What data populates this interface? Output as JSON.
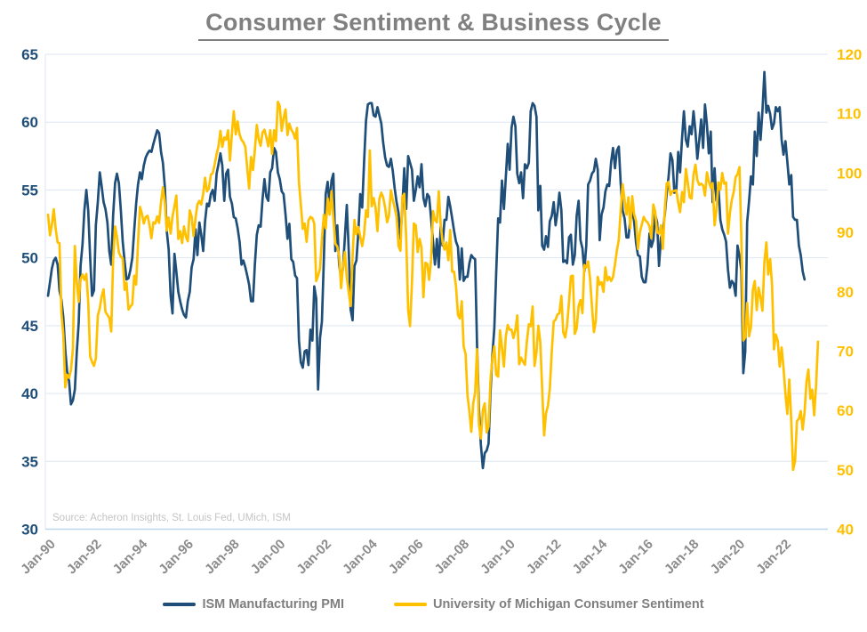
{
  "title": "Consumer Sentiment & Business Cycle",
  "source_note": "Source: Acheron Insights, St. Louis Fed, UMich, ISM",
  "colors": {
    "ism_line": "#1F4E79",
    "umich_line": "#FFC000",
    "title_text": "#808080",
    "x_label_gray": "#8C8C8C",
    "legend_text": "#7F7F7F",
    "source_text": "#C4C4C4",
    "gridline": "#DCE6F2",
    "axis_line": "#BDD7EE",
    "background": "#FFFFFF"
  },
  "chart_data": {
    "type": "line",
    "title": "Consumer Sentiment & Business Cycle",
    "grid": "horizontal-major-left-axis",
    "legend_position": "bottom-center",
    "x_start": "Jan-1990",
    "x_frequency": "monthly",
    "months_per_tick": 24,
    "x_tick_labels": [
      "Jan-90",
      "Jan-92",
      "Jan-94",
      "Jan-96",
      "Jan-98",
      "Jan-00",
      "Jan-02",
      "Jan-04",
      "Jan-06",
      "Jan-08",
      "Jan-10",
      "Jan-12",
      "Jan-14",
      "Jan-16",
      "Jan-18",
      "Jan-20",
      "Jan-22"
    ],
    "left_axis": {
      "min": 30,
      "max": 65,
      "tick_step": 5,
      "ticks": [
        65,
        60,
        55,
        50,
        45,
        40,
        35,
        30
      ],
      "color": "#1F4E79"
    },
    "right_axis": {
      "min": 40,
      "max": 120,
      "tick_step": 10,
      "ticks": [
        120,
        110,
        100,
        90,
        80,
        70,
        60,
        50,
        40
      ],
      "color": "#FFC000"
    },
    "series": [
      {
        "name": "ISM Manufacturing PMI",
        "axis": "left",
        "color": "#1F4E79",
        "start": "Jan-1990",
        "values": [
          47.2,
          48.2,
          49.2,
          49.8,
          50.0,
          49.5,
          47.6,
          46.9,
          45.6,
          43.2,
          41.6,
          40.9,
          39.2,
          39.5,
          40.3,
          43.0,
          45.2,
          49.4,
          51.0,
          53.5,
          55.0,
          53.5,
          50.0,
          47.2,
          47.6,
          52.4,
          54.1,
          56.3,
          55.3,
          54.1,
          53.6,
          52.6,
          50.5,
          49.5,
          53.1,
          55.5,
          56.2,
          55.5,
          53.5,
          51.2,
          49.7,
          48.4,
          48.5,
          49.1,
          50.0,
          52.0,
          54.0,
          55.4,
          56.3,
          55.8,
          56.8,
          57.4,
          57.7,
          57.9,
          57.8,
          58.4,
          58.9,
          59.4,
          59.2,
          57.8,
          57.0,
          55.2,
          52.0,
          50.6,
          47.2,
          45.9,
          50.3,
          49.0,
          47.5,
          46.8,
          46.2,
          45.8,
          45.6,
          46.8,
          47.5,
          49.3,
          49.9,
          52.1,
          50.2,
          52.6,
          51.7,
          50.5,
          52.7,
          54.0,
          53.8,
          54.7,
          55.0,
          54.2,
          56.2,
          56.9,
          57.7,
          56.8,
          54.2,
          56.2,
          56.5,
          54.5,
          54.0,
          53.0,
          52.9,
          52.2,
          51.2,
          49.5,
          49.8,
          49.3,
          48.7,
          48.0,
          46.8,
          46.8,
          49.5,
          51.7,
          52.4,
          52.3,
          54.3,
          55.8,
          54.5,
          54.2,
          56.3,
          56.6,
          58.1,
          57.8,
          56.3,
          55.8,
          54.9,
          54.7,
          53.2,
          51.4,
          52.5,
          49.9,
          49.7,
          48.7,
          48.5,
          43.9,
          42.3,
          41.9,
          43.1,
          43.2,
          42.1,
          44.7,
          43.9,
          47.9,
          47.0,
          40.3,
          44.1,
          45.3,
          49.9,
          54.7,
          55.6,
          53.9,
          55.7,
          56.2,
          50.5,
          52.4,
          49.5,
          48.5,
          49.2,
          51.6,
          53.9,
          50.5,
          46.2,
          45.4,
          49.4,
          49.8,
          51.8,
          54.7,
          53.7,
          57.0,
          60.1,
          61.3,
          61.4,
          61.4,
          60.5,
          60.4,
          61.1,
          60.5,
          59.9,
          58.5,
          57.4,
          56.8,
          56.7,
          57.3,
          56.4,
          55.1,
          54.1,
          53.3,
          51.4,
          53.8,
          56.6,
          53.6,
          57.5,
          57.0,
          56.5,
          54.2,
          55.0,
          56.0,
          55.2,
          56.9,
          54.4,
          53.8,
          54.7,
          54.5,
          52.9,
          51.2,
          49.5,
          51.4,
          49.3,
          52.3,
          50.9,
          52.8,
          52.8,
          54.5,
          53.8,
          52.9,
          52.0,
          51.2,
          50.8,
          48.4,
          50.7,
          48.3,
          48.6,
          48.6,
          49.6,
          50.2,
          50.0,
          49.9,
          43.5,
          38.9,
          36.2,
          34.5,
          35.6,
          35.8,
          36.3,
          40.1,
          42.8,
          44.8,
          48.9,
          52.9,
          52.6,
          55.7,
          53.6,
          55.9,
          58.4,
          56.5,
          59.6,
          60.4,
          59.7,
          56.2,
          55.5,
          56.3,
          54.4,
          56.9,
          56.6,
          57.0,
          60.8,
          61.4,
          61.2,
          60.4,
          53.5,
          55.3,
          50.9,
          50.6,
          51.6,
          50.8,
          52.7,
          53.1,
          54.1,
          52.4,
          53.4,
          54.8,
          53.5,
          49.7,
          49.8,
          49.6,
          51.5,
          51.7,
          49.5,
          50.2,
          53.1,
          54.2,
          51.3,
          50.7,
          49.0,
          50.9,
          55.4,
          55.7,
          56.2,
          56.4,
          57.3,
          56.5,
          51.3,
          53.2,
          53.7,
          54.9,
          55.4,
          55.3,
          57.1,
          58.1,
          56.6,
          57.9,
          58.2,
          55.5,
          53.5,
          52.9,
          51.5,
          51.5,
          52.8,
          53.5,
          52.7,
          51.1,
          50.2,
          50.1,
          48.6,
          48.2,
          48.2,
          49.5,
          51.8,
          50.8,
          51.3,
          53.2,
          52.6,
          49.4,
          51.5,
          51.9,
          53.2,
          54.7,
          56.0,
          57.7,
          57.2,
          54.8,
          54.9,
          57.8,
          56.3,
          58.8,
          60.8,
          58.7,
          58.2,
          59.7,
          59.1,
          60.8,
          59.3,
          57.3,
          58.7,
          60.2,
          58.1,
          61.3,
          59.8,
          57.7,
          59.3,
          54.1,
          56.6,
          54.2,
          55.3,
          52.8,
          52.1,
          51.7,
          51.2,
          49.1,
          47.8,
          48.3,
          48.1,
          47.2,
          50.9,
          50.1,
          49.1,
          41.5,
          43.1,
          52.6,
          54.2,
          56.0,
          55.4,
          59.3,
          57.5,
          60.7,
          58.7,
          60.8,
          63.7,
          60.7,
          61.2,
          60.6,
          59.5,
          59.9,
          61.1,
          60.8,
          61.1,
          58.7,
          57.6,
          58.6,
          57.1,
          55.4,
          56.1,
          53.0,
          52.8,
          52.8,
          50.9,
          50.2,
          49.0,
          48.4
        ]
      },
      {
        "name": "University of Michigan Consumer Sentiment",
        "axis": "right",
        "color": "#FFC000",
        "start": "Jan-1990",
        "values": [
          93.0,
          89.5,
          91.3,
          93.9,
          90.6,
          88.3,
          88.2,
          76.4,
          72.8,
          63.9,
          66.0,
          65.5,
          66.8,
          70.4,
          87.7,
          81.8,
          78.3,
          82.1,
          82.9,
          82.0,
          83.0,
          78.3,
          69.1,
          68.2,
          67.5,
          68.8,
          76.0,
          77.2,
          79.2,
          80.4,
          76.6,
          76.1,
          75.6,
          73.3,
          85.3,
          91.0,
          89.3,
          86.6,
          85.9,
          85.6,
          80.3,
          81.5,
          77.0,
          77.5,
          77.9,
          82.7,
          81.2,
          88.2,
          94.3,
          93.2,
          91.5,
          92.6,
          92.8,
          91.2,
          89.0,
          91.7,
          91.5,
          92.7,
          91.6,
          95.1,
          97.6,
          95.1,
          90.3,
          92.5,
          89.8,
          92.7,
          94.4,
          96.2,
          88.9,
          90.2,
          88.2,
          91.0,
          89.3,
          88.5,
          93.7,
          92.7,
          89.4,
          92.4,
          94.7,
          95.3,
          94.7,
          96.5,
          99.2,
          96.9,
          97.4,
          99.7,
          100.0,
          101.4,
          103.2,
          104.5,
          107.1,
          104.4,
          106.0,
          105.6,
          107.2,
          102.1,
          106.6,
          110.4,
          106.5,
          108.7,
          106.5,
          105.6,
          105.2,
          104.4,
          100.9,
          97.4,
          102.7,
          100.5,
          103.9,
          108.1,
          105.7,
          104.6,
          106.8,
          107.3,
          106.0,
          104.5,
          107.2,
          103.2,
          107.2,
          105.4,
          112.0,
          111.3,
          107.1,
          109.2,
          110.7,
          106.4,
          108.3,
          107.3,
          106.8,
          105.8,
          107.6,
          98.4,
          94.7,
          90.6,
          91.5,
          88.4,
          92.0,
          92.6,
          92.4,
          91.5,
          81.8,
          82.7,
          83.9,
          88.8,
          93.0,
          90.7,
          95.7,
          93.0,
          96.9,
          92.4,
          88.1,
          87.6,
          86.1,
          80.6,
          84.2,
          86.7,
          82.4,
          79.9,
          77.6,
          86.0,
          92.1,
          89.7,
          90.9,
          89.3,
          87.7,
          89.6,
          93.7,
          92.6,
          103.8,
          94.4,
          95.8,
          94.2,
          90.2,
          95.6,
          96.7,
          95.9,
          94.2,
          91.7,
          92.8,
          97.1,
          95.5,
          94.1,
          92.6,
          87.7,
          86.9,
          96.0,
          96.5,
          89.1,
          76.9,
          74.2,
          81.6,
          91.5,
          91.2,
          86.7,
          88.9,
          87.4,
          79.1,
          84.9,
          84.7,
          82.0,
          85.4,
          93.6,
          92.1,
          91.7,
          96.9,
          91.3,
          88.4,
          87.1,
          88.3,
          85.3,
          90.4,
          83.4,
          83.4,
          80.9,
          76.1,
          75.5,
          78.4,
          70.8,
          69.5,
          62.6,
          59.8,
          56.4,
          61.2,
          63.0,
          70.3,
          57.6,
          55.3,
          60.1,
          61.2,
          56.3,
          57.3,
          65.1,
          68.7,
          70.8,
          66.0,
          65.7,
          73.5,
          70.6,
          67.4,
          72.5,
          74.4,
          73.6,
          73.6,
          72.2,
          73.6,
          76.0,
          67.8,
          68.9,
          68.2,
          67.7,
          71.6,
          74.5,
          74.2,
          77.5,
          67.5,
          69.8,
          74.3,
          71.5,
          63.7,
          55.8,
          59.5,
          60.8,
          63.7,
          69.9,
          75.0,
          75.3,
          76.2,
          76.4,
          79.3,
          73.2,
          72.3,
          74.3,
          78.3,
          82.6,
          82.7,
          72.9,
          73.8,
          77.6,
          78.6,
          76.4,
          84.5,
          84.1,
          85.1,
          82.1,
          77.5,
          73.2,
          75.1,
          82.5,
          81.2,
          81.6,
          80.0,
          84.1,
          81.9,
          82.5,
          81.8,
          82.5,
          84.6,
          86.9,
          88.8,
          93.6,
          98.1,
          95.4,
          93.0,
          95.9,
          90.7,
          96.1,
          93.1,
          91.9,
          87.2,
          90.0,
          91.3,
          92.6,
          92.0,
          91.7,
          91.0,
          89.0,
          94.7,
          93.5,
          90.0,
          89.8,
          91.2,
          87.2,
          93.8,
          98.2,
          98.5,
          96.3,
          96.9,
          97.0,
          97.1,
          95.0,
          93.4,
          96.8,
          95.1,
          100.7,
          98.5,
          95.9,
          95.7,
          99.7,
          101.4,
          98.8,
          98.0,
          98.2,
          97.9,
          96.2,
          100.1,
          98.6,
          97.5,
          98.3,
          91.2,
          93.8,
          98.4,
          97.2,
          100.0,
          98.2,
          98.4,
          89.8,
          93.2,
          95.5,
          96.8,
          99.3,
          99.8,
          101.0,
          89.1,
          71.8,
          72.3,
          78.1,
          72.5,
          74.1,
          80.4,
          81.8,
          76.9,
          80.7,
          79.0,
          76.8,
          84.9,
          88.3,
          82.9,
          85.5,
          81.2,
          70.3,
          72.8,
          71.7,
          67.4,
          70.6,
          67.2,
          62.8,
          59.4,
          65.2,
          58.4,
          50.0,
          51.5,
          58.2,
          58.6,
          59.9,
          56.8,
          59.7,
          64.9,
          66.9,
          62.0,
          63.5,
          59.2,
          64.4,
          71.6
        ]
      }
    ]
  }
}
